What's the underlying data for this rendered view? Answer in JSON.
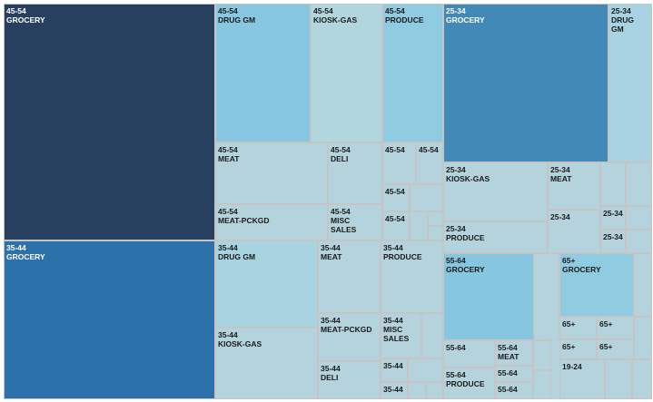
{
  "chart_data": {
    "type": "treemap",
    "tiles": [
      {
        "label": "45-54\nGROCERY",
        "group": "45-54",
        "color": "#27405f"
      },
      {
        "label": "35-44\nGROCERY",
        "group": "35-44",
        "color": "#2d71ab"
      },
      {
        "label": "45-54\nDRUG GM",
        "group": "45-54",
        "color": "#87c7e1"
      },
      {
        "label": "45-54\nKIOSK-GAS",
        "group": "45-54",
        "color": "#b2d6dd"
      },
      {
        "label": "45-54\nPRODUCE",
        "group": "45-54",
        "color": "#8fcbe1"
      },
      {
        "label": "45-54\nMEAT",
        "group": "45-54",
        "color": "#b5d3dc"
      },
      {
        "label": "45-54\nDELI",
        "group": "45-54",
        "color": "#b5d3dc"
      },
      {
        "label": "45-54\nMEAT-PCKGD",
        "group": "45-54",
        "color": "#b5d3dc"
      },
      {
        "label": "45-54\nMISC\nSALES",
        "group": "45-54",
        "color": "#b5d3dc"
      },
      {
        "label": "45-54",
        "group": "45-54",
        "color": "#b5d3dc"
      },
      {
        "label": "45-54",
        "group": "45-54",
        "color": "#b5d3dc"
      },
      {
        "label": "45-54",
        "group": "45-54",
        "color": "#b5d3dc"
      },
      {
        "label": "45-54",
        "group": "45-54",
        "color": "#b5d3dc"
      },
      {
        "label": "",
        "group": "45-54",
        "color": "#b5d3dc"
      },
      {
        "label": "",
        "group": "45-54",
        "color": "#b5d3dc"
      },
      {
        "label": "",
        "group": "45-54",
        "color": "#b5d3dc"
      },
      {
        "label": "",
        "group": "45-54",
        "color": "#b5d3dc"
      },
      {
        "label": "25-34\nGROCERY",
        "group": "25-34",
        "color": "#4389b8"
      },
      {
        "label": "25-34\nDRUG\nGM",
        "group": "25-34",
        "color": "#a7d3e2"
      },
      {
        "label": "25-34\nKIOSK-GAS",
        "group": "25-34",
        "color": "#b5d3dc"
      },
      {
        "label": "25-34\nMEAT",
        "group": "25-34",
        "color": "#b5d3dc"
      },
      {
        "label": "25-34\nPRODUCE",
        "group": "25-34",
        "color": "#b5d3dc"
      },
      {
        "label": "25-34",
        "group": "25-34",
        "color": "#b5d3dc"
      },
      {
        "label": "25-34",
        "group": "25-34",
        "color": "#b5d3dc"
      },
      {
        "label": "25-34",
        "group": "25-34",
        "color": "#b5d3dc"
      },
      {
        "label": "",
        "group": "25-34",
        "color": "#b5d3dc"
      },
      {
        "label": "",
        "group": "25-34",
        "color": "#b5d3dc"
      },
      {
        "label": "",
        "group": "25-34",
        "color": "#b5d3dc"
      },
      {
        "label": "",
        "group": "25-34",
        "color": "#b5d3dc"
      },
      {
        "label": "35-44\nDRUG GM",
        "group": "35-44",
        "color": "#a8d4e2"
      },
      {
        "label": "35-44\nMEAT",
        "group": "35-44",
        "color": "#b5d3dc"
      },
      {
        "label": "35-44\nPRODUCE",
        "group": "35-44",
        "color": "#b5d3dc"
      },
      {
        "label": "35-44\nKIOSK-GAS",
        "group": "35-44",
        "color": "#b5d3dc"
      },
      {
        "label": "35-44\nMEAT-PCKGD",
        "group": "35-44",
        "color": "#b5d3dc"
      },
      {
        "label": "35-44\nMISC\nSALES",
        "group": "35-44",
        "color": "#b5d3dc"
      },
      {
        "label": "35-44\nDELI",
        "group": "35-44",
        "color": "#b5d3dc"
      },
      {
        "label": "35-44",
        "group": "35-44",
        "color": "#b5d3dc"
      },
      {
        "label": "35-44",
        "group": "35-44",
        "color": "#b5d3dc"
      },
      {
        "label": "",
        "group": "35-44",
        "color": "#b5d3dc"
      },
      {
        "label": "",
        "group": "35-44",
        "color": "#b5d3dc"
      },
      {
        "label": "",
        "group": "35-44",
        "color": "#b5d3dc"
      },
      {
        "label": "",
        "group": "35-44",
        "color": "#b5d3dc"
      },
      {
        "label": "55-64\nGROCERY",
        "group": "55-64",
        "color": "#86c6e0"
      },
      {
        "label": "",
        "group": "55-64",
        "color": "#b5d3dc"
      },
      {
        "label": "55-64",
        "group": "55-64",
        "color": "#b5d3dc"
      },
      {
        "label": "55-64\nMEAT",
        "group": "55-64",
        "color": "#b5d3dc"
      },
      {
        "label": "55-64\nPRODUCE",
        "group": "55-64",
        "color": "#b5d3dc"
      },
      {
        "label": "55-64",
        "group": "55-64",
        "color": "#b5d3dc"
      },
      {
        "label": "55-64",
        "group": "55-64",
        "color": "#b5d3dc"
      },
      {
        "label": "",
        "group": "55-64",
        "color": "#b5d3dc"
      },
      {
        "label": "",
        "group": "55-64",
        "color": "#b5d3dc"
      },
      {
        "label": "65+\nGROCERY",
        "group": "65+",
        "color": "#8fcbe1"
      },
      {
        "label": "",
        "group": "65+",
        "color": "#b5d3dc"
      },
      {
        "label": "65+",
        "group": "65+",
        "color": "#b5d3dc"
      },
      {
        "label": "65+",
        "group": "65+",
        "color": "#b5d3dc"
      },
      {
        "label": "65+",
        "group": "65+",
        "color": "#b5d3dc"
      },
      {
        "label": "65+",
        "group": "65+",
        "color": "#b5d3dc"
      },
      {
        "label": "",
        "group": "65+",
        "color": "#b5d3dc"
      },
      {
        "label": "",
        "group": "65+",
        "color": "#b5d3dc"
      },
      {
        "label": "19-24",
        "group": "19-24",
        "color": "#b5d3dc"
      },
      {
        "label": "",
        "group": "19-24",
        "color": "#b5d3dc"
      },
      {
        "label": "",
        "group": "19-24",
        "color": "#b5d3dc"
      }
    ]
  }
}
